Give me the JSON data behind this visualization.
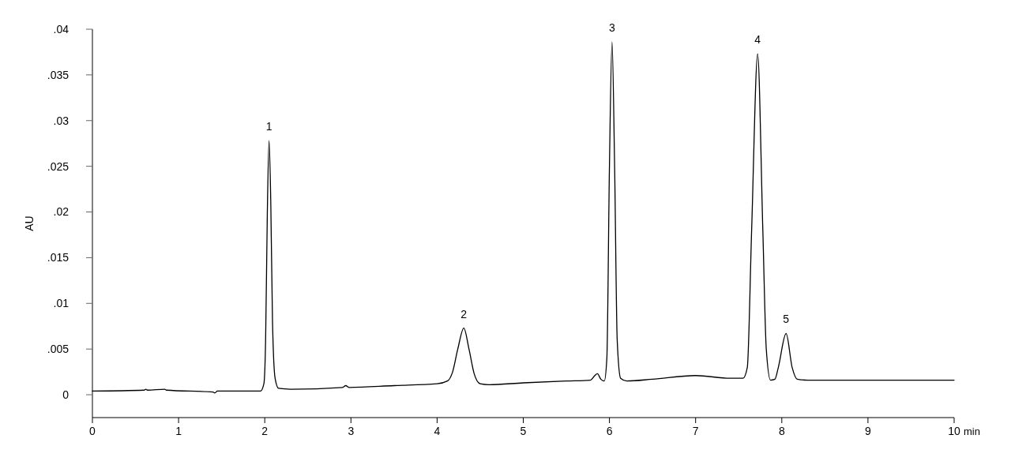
{
  "chart_data": {
    "type": "line",
    "xlabel": "min",
    "ylabel": "AU",
    "x": [
      0,
      0.6,
      0.62,
      0.64,
      0.84,
      0.86,
      1.4,
      1.42,
      1.45,
      1.95,
      1.99,
      2.01,
      2.03,
      2.05,
      2.07,
      2.09,
      2.12,
      2.16,
      2.3,
      2.9,
      2.94,
      2.98,
      3.5,
      4.0,
      4.12,
      4.18,
      4.24,
      4.31,
      4.37,
      4.43,
      4.5,
      4.6,
      5.0,
      5.5,
      5.78,
      5.83,
      5.86,
      5.9,
      5.94,
      5.97,
      6.0,
      6.03,
      6.06,
      6.09,
      6.13,
      6.2,
      6.5,
      7.0,
      7.4,
      7.55,
      7.6,
      7.65,
      7.72,
      7.78,
      7.82,
      7.87,
      7.92,
      7.96,
      8.05,
      8.12,
      8.18,
      8.3,
      9.0,
      10
    ],
    "series": [
      {
        "color": "#000000",
        "values": [
          0.0004,
          0.0005,
          0.0006,
          0.0005,
          0.0006,
          0.0005,
          0.0003,
          0.0002,
          0.0004,
          0.0004,
          0.0012,
          0.006,
          0.02,
          0.0278,
          0.021,
          0.008,
          0.0018,
          0.0007,
          0.0006,
          0.0008,
          0.001,
          0.0008,
          0.001,
          0.0012,
          0.0015,
          0.0025,
          0.005,
          0.0073,
          0.005,
          0.0023,
          0.0012,
          0.0011,
          0.0013,
          0.0015,
          0.0016,
          0.0021,
          0.0023,
          0.0017,
          0.0015,
          0.004,
          0.025,
          0.0386,
          0.025,
          0.006,
          0.0018,
          0.0015,
          0.0017,
          0.0021,
          0.0018,
          0.0018,
          0.003,
          0.018,
          0.0373,
          0.018,
          0.005,
          0.0016,
          0.0017,
          0.003,
          0.0067,
          0.003,
          0.0017,
          0.0016,
          0.0016,
          0.0016
        ]
      }
    ],
    "xlim": [
      0,
      10
    ],
    "xticks": [
      0,
      1,
      2,
      3,
      4,
      5,
      6,
      7,
      8,
      9,
      10
    ],
    "ylim": [
      -0.0025,
      0.04
    ],
    "yticks": [
      {
        "value": 0,
        "label": "0"
      },
      {
        "value": 0.005,
        "label": ".005"
      },
      {
        "value": 0.01,
        "label": ".01"
      },
      {
        "value": 0.015,
        "label": ".015"
      },
      {
        "value": 0.02,
        "label": ".02"
      },
      {
        "value": 0.025,
        "label": ".025"
      },
      {
        "value": 0.03,
        "label": ".03"
      },
      {
        "value": 0.035,
        "label": ".035"
      },
      {
        "value": 0.04,
        "label": ".04"
      }
    ],
    "annotations": [
      {
        "text": "1",
        "x": 2.05,
        "y": 0.0278
      },
      {
        "text": "2",
        "x": 4.31,
        "y": 0.0073
      },
      {
        "text": "3",
        "x": 6.03,
        "y": 0.0386
      },
      {
        "text": "4",
        "x": 7.72,
        "y": 0.0373
      },
      {
        "text": "5",
        "x": 8.05,
        "y": 0.0067
      }
    ]
  }
}
